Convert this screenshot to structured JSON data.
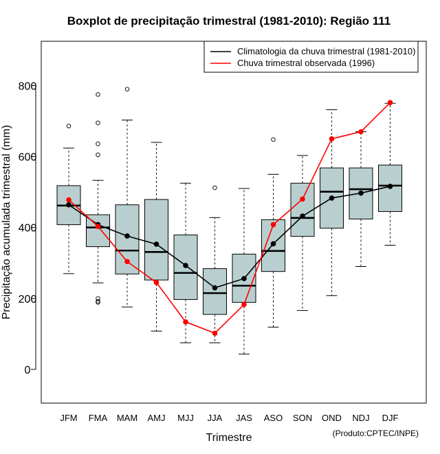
{
  "chart_data": {
    "type": "boxplot",
    "title": "Boxplot de precipitação trimestral (1981-2010): Região 111",
    "xlabel": "Trimestre",
    "ylabel": "Precipitação acumulada trimestral (mm)",
    "ylim": [
      -95,
      925
    ],
    "yticks": [
      0,
      200,
      400,
      600,
      800
    ],
    "credit": "(Produto:CPTEC/INPE)",
    "categories": [
      "JFM",
      "FMA",
      "MAM",
      "AMJ",
      "MJJ",
      "JJA",
      "JAS",
      "ASO",
      "SON",
      "OND",
      "NDJ",
      "DJF"
    ],
    "boxes": [
      {
        "min": 270,
        "q1": 408,
        "median": 462,
        "q3": 518,
        "max": 624,
        "outliers": [
          686
        ]
      },
      {
        "min": 244,
        "q1": 346,
        "median": 400,
        "q3": 436,
        "max": 533,
        "outliers": [
          189,
          192,
          200,
          605,
          636,
          695,
          775
        ]
      },
      {
        "min": 176,
        "q1": 269,
        "median": 335,
        "q3": 464,
        "max": 703,
        "outliers": [
          790
        ]
      },
      {
        "min": 108,
        "q1": 252,
        "median": 331,
        "q3": 479,
        "max": 640,
        "outliers": []
      },
      {
        "min": 75,
        "q1": 197,
        "median": 272,
        "q3": 379,
        "max": 525,
        "outliers": []
      },
      {
        "min": 75,
        "q1": 155,
        "median": 215,
        "q3": 284,
        "max": 428,
        "outliers": [
          512
        ]
      },
      {
        "min": 43,
        "q1": 189,
        "median": 236,
        "q3": 325,
        "max": 510,
        "outliers": []
      },
      {
        "min": 119,
        "q1": 276,
        "median": 334,
        "q3": 422,
        "max": 550,
        "outliers": [
          648
        ]
      },
      {
        "min": 166,
        "q1": 375,
        "median": 427,
        "q3": 525,
        "max": 603,
        "outliers": []
      },
      {
        "min": 208,
        "q1": 398,
        "median": 501,
        "q3": 568,
        "max": 732,
        "outliers": []
      },
      {
        "min": 290,
        "q1": 424,
        "median": 508,
        "q3": 568,
        "max": 670,
        "outliers": []
      },
      {
        "min": 350,
        "q1": 445,
        "median": 518,
        "q3": 576,
        "max": 750,
        "outliers": []
      }
    ],
    "series": [
      {
        "name": "Climatologia da chuva trimestral (1981-2010)",
        "color": "#000000",
        "values": [
          464,
          408,
          376,
          353,
          293,
          230,
          256,
          354,
          432,
          483,
          497,
          516
        ]
      },
      {
        "name": "Chuva trimestral observada (1996)",
        "color": "#ff0000",
        "values": [
          478,
          403,
          304,
          245,
          134,
          102,
          183,
          408,
          480,
          650,
          670,
          752
        ]
      }
    ],
    "box_fill": "#b9cfcf",
    "legend_position": "top-right"
  }
}
